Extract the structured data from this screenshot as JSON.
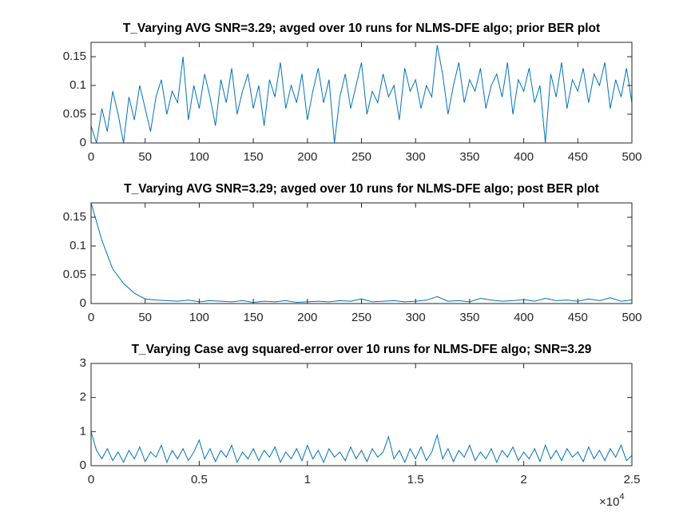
{
  "chart_data": [
    {
      "type": "line",
      "title": "T_Varying AVG SNR=3.29; avged over 10 runs for NLMS-DFE algo; prior BER plot",
      "x": [
        0,
        5,
        10,
        15,
        20,
        25,
        30,
        35,
        40,
        45,
        50,
        55,
        60,
        65,
        70,
        75,
        80,
        85,
        90,
        95,
        100,
        105,
        110,
        115,
        120,
        125,
        130,
        135,
        140,
        145,
        150,
        155,
        160,
        165,
        170,
        175,
        180,
        185,
        190,
        195,
        200,
        205,
        210,
        215,
        220,
        225,
        230,
        235,
        240,
        245,
        250,
        255,
        260,
        265,
        270,
        275,
        280,
        285,
        290,
        295,
        300,
        305,
        310,
        315,
        320,
        325,
        330,
        335,
        340,
        345,
        350,
        355,
        360,
        365,
        370,
        375,
        380,
        385,
        390,
        395,
        400,
        405,
        410,
        415,
        420,
        425,
        430,
        435,
        440,
        445,
        450,
        455,
        460,
        465,
        470,
        475,
        480,
        485,
        490,
        495,
        500
      ],
      "series": [
        {
          "color": "#0072bd",
          "values": [
            0.03,
            0.0,
            0.06,
            0.02,
            0.09,
            0.05,
            0.0,
            0.08,
            0.04,
            0.1,
            0.06,
            0.02,
            0.08,
            0.11,
            0.05,
            0.09,
            0.07,
            0.15,
            0.04,
            0.1,
            0.06,
            0.12,
            0.08,
            0.03,
            0.11,
            0.07,
            0.13,
            0.05,
            0.09,
            0.12,
            0.06,
            0.1,
            0.03,
            0.11,
            0.08,
            0.14,
            0.06,
            0.1,
            0.07,
            0.12,
            0.04,
            0.09,
            0.13,
            0.07,
            0.11,
            0.0,
            0.08,
            0.12,
            0.06,
            0.1,
            0.14,
            0.05,
            0.09,
            0.07,
            0.12,
            0.08,
            0.1,
            0.04,
            0.13,
            0.09,
            0.11,
            0.06,
            0.1,
            0.08,
            0.17,
            0.12,
            0.05,
            0.1,
            0.14,
            0.07,
            0.11,
            0.09,
            0.13,
            0.06,
            0.1,
            0.12,
            0.08,
            0.14,
            0.05,
            0.11,
            0.09,
            0.13,
            0.07,
            0.1,
            0.0,
            0.12,
            0.08,
            0.14,
            0.06,
            0.11,
            0.09,
            0.13,
            0.07,
            0.12,
            0.1,
            0.14,
            0.06,
            0.11,
            0.08,
            0.13,
            0.07
          ]
        }
      ],
      "xlim": [
        0,
        500
      ],
      "ylim": [
        0,
        0.175
      ],
      "xticks": [
        0,
        50,
        100,
        150,
        200,
        250,
        300,
        350,
        400,
        450,
        500
      ],
      "yticks": [
        0,
        0.05,
        0.1,
        0.15
      ]
    },
    {
      "type": "line",
      "title": "T_Varying AVG SNR=3.29; avged over 10 runs for NLMS-DFE algo; post BER plot",
      "x": [
        0,
        10,
        20,
        30,
        40,
        50,
        60,
        70,
        80,
        90,
        100,
        110,
        120,
        130,
        140,
        150,
        160,
        170,
        180,
        190,
        200,
        210,
        220,
        230,
        240,
        250,
        260,
        270,
        280,
        290,
        300,
        310,
        320,
        330,
        340,
        350,
        360,
        370,
        380,
        390,
        400,
        410,
        420,
        430,
        440,
        450,
        460,
        470,
        480,
        490,
        500
      ],
      "series": [
        {
          "color": "#0072bd",
          "values": [
            0.175,
            0.11,
            0.06,
            0.035,
            0.018,
            0.008,
            0.006,
            0.005,
            0.004,
            0.006,
            0.003,
            0.005,
            0.004,
            0.003,
            0.005,
            0.002,
            0.004,
            0.003,
            0.005,
            0.002,
            0.003,
            0.004,
            0.003,
            0.005,
            0.004,
            0.008,
            0.003,
            0.004,
            0.005,
            0.003,
            0.004,
            0.006,
            0.012,
            0.004,
            0.005,
            0.003,
            0.009,
            0.006,
            0.004,
            0.005,
            0.007,
            0.004,
            0.009,
            0.005,
            0.006,
            0.004,
            0.008,
            0.005,
            0.01,
            0.004,
            0.006
          ]
        }
      ],
      "xlim": [
        0,
        500
      ],
      "ylim": [
        0,
        0.175
      ],
      "xticks": [
        0,
        50,
        100,
        150,
        200,
        250,
        300,
        350,
        400,
        450,
        500
      ],
      "yticks": [
        0,
        0.05,
        0.1,
        0.15
      ]
    },
    {
      "type": "line",
      "title": "T_Varying Case avg squared-error over 10 runs for NLMS-DFE algo; SNR=3.29",
      "x": [
        0,
        250,
        500,
        750,
        1000,
        1250,
        1500,
        1750,
        2000,
        2250,
        2500,
        2750,
        3000,
        3250,
        3500,
        3750,
        4000,
        4250,
        4500,
        4750,
        5000,
        5250,
        5500,
        5750,
        6000,
        6250,
        6500,
        6750,
        7000,
        7250,
        7500,
        7750,
        8000,
        8250,
        8500,
        8750,
        9000,
        9250,
        9500,
        9750,
        10000,
        10250,
        10500,
        10750,
        11000,
        11250,
        11500,
        11750,
        12000,
        12250,
        12500,
        12750,
        13000,
        13250,
        13500,
        13750,
        14000,
        14250,
        14500,
        14750,
        15000,
        15250,
        15500,
        15750,
        16000,
        16250,
        16500,
        16750,
        17000,
        17250,
        17500,
        17750,
        18000,
        18250,
        18500,
        18750,
        19000,
        19250,
        19500,
        19750,
        20000,
        20250,
        20500,
        20750,
        21000,
        21250,
        21500,
        21750,
        22000,
        22250,
        22500,
        22750,
        23000,
        23250,
        23500,
        23750,
        24000,
        24250,
        24500,
        24750,
        25000
      ],
      "series": [
        {
          "color": "#0072bd",
          "values": [
            1.0,
            0.45,
            0.2,
            0.5,
            0.15,
            0.4,
            0.1,
            0.45,
            0.2,
            0.55,
            0.12,
            0.4,
            0.25,
            0.6,
            0.1,
            0.45,
            0.2,
            0.5,
            0.15,
            0.4,
            0.75,
            0.2,
            0.5,
            0.12,
            0.45,
            0.25,
            0.6,
            0.1,
            0.4,
            0.2,
            0.5,
            0.15,
            0.45,
            0.25,
            0.55,
            0.1,
            0.4,
            0.2,
            0.5,
            0.15,
            0.6,
            0.2,
            0.45,
            0.1,
            0.5,
            0.25,
            0.4,
            0.15,
            0.55,
            0.2,
            0.45,
            0.12,
            0.5,
            0.25,
            0.4,
            0.85,
            0.2,
            0.45,
            0.1,
            0.5,
            0.2,
            0.55,
            0.15,
            0.4,
            0.9,
            0.2,
            0.5,
            0.12,
            0.45,
            0.25,
            0.6,
            0.15,
            0.4,
            0.2,
            0.5,
            0.1,
            0.45,
            0.25,
            0.55,
            0.15,
            0.4,
            0.2,
            0.5,
            0.12,
            0.6,
            0.2,
            0.45,
            0.15,
            0.5,
            0.25,
            0.4,
            0.12,
            0.55,
            0.2,
            0.45,
            0.15,
            0.5,
            0.25,
            0.6,
            0.15,
            0.3
          ]
        }
      ],
      "xlim": [
        0,
        25000
      ],
      "ylim": [
        0,
        3
      ],
      "xticks": [
        0,
        {
          "value": 5000,
          "label": "0.5"
        },
        {
          "value": 10000,
          "label": "1"
        },
        {
          "value": 15000,
          "label": "1.5"
        },
        {
          "value": 20000,
          "label": "2"
        },
        {
          "value": 25000,
          "label": "2.5"
        }
      ],
      "yticks": [
        0,
        1,
        2,
        3
      ],
      "x_multiplier": {
        "base": "×10",
        "exponent": "4"
      }
    }
  ]
}
